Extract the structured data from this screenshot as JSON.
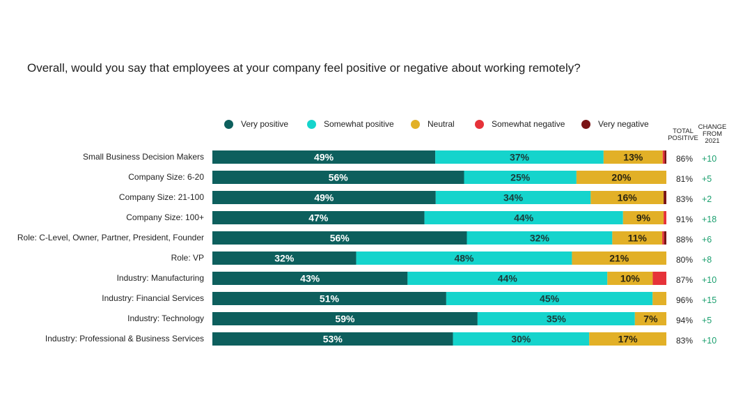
{
  "chart_data": {
    "type": "bar",
    "orientation": "horizontal",
    "stacked": true,
    "title": "Overall, would you say that employees at your company feel positive or negative about working remotely?",
    "xlim": [
      0,
      100
    ],
    "legend_position": "top",
    "categories": [
      "Small Business Decision Makers",
      "Company Size: 6-20",
      "Company Size: 21-100",
      "Company Size: 100+",
      "Role: C-Level, Owner, Partner, President, Founder",
      "Role: VP",
      "Industry: Manufacturing",
      "Industry: Financial Services",
      "Industry: Technology",
      "Industry: Professional & Business Services"
    ],
    "series": [
      {
        "name": "Very positive",
        "color": "#0d5f5d",
        "label_color": "#ffffff",
        "values": [
          49,
          56,
          49,
          47,
          56,
          32,
          43,
          51,
          59,
          53
        ],
        "labels": [
          "49%",
          "56%",
          "49%",
          "47%",
          "56%",
          "32%",
          "43%",
          "51%",
          "59%",
          "53%"
        ]
      },
      {
        "name": "Somewhat positive",
        "color": "#15d4cc",
        "label_color": "#1d3a3a",
        "values": [
          37,
          25,
          34,
          44,
          32,
          48,
          44,
          45,
          35,
          30
        ],
        "labels": [
          "37%",
          "25%",
          "34%",
          "44%",
          "32%",
          "48%",
          "44%",
          "45%",
          "35%",
          "30%"
        ]
      },
      {
        "name": "Neutral",
        "color": "#e2b027",
        "label_color": "#2a2410",
        "values": [
          13,
          20,
          16,
          9,
          11,
          21,
          10,
          3,
          7,
          17
        ],
        "labels": [
          "13%",
          "20%",
          "16%",
          "9%",
          "11%",
          "21%",
          "10%",
          "",
          "7%",
          "17%"
        ]
      },
      {
        "name": "Somewhat negative",
        "color": "#e63239",
        "label_color": "#ffffff",
        "values": [
          0.4,
          0,
          0,
          0.6,
          0.4,
          0,
          3,
          0,
          0,
          0
        ],
        "labels": [
          "",
          "",
          "",
          "",
          "",
          "",
          "",
          "",
          "",
          ""
        ]
      },
      {
        "name": "Very negative",
        "color": "#7a1416",
        "label_color": "#ffffff",
        "values": [
          0.4,
          0,
          0.6,
          0,
          0.5,
          0,
          0,
          0,
          0,
          0
        ],
        "labels": [
          "",
          "",
          "",
          "",
          "",
          "",
          "",
          "",
          "",
          ""
        ]
      }
    ],
    "column_headers": {
      "total_positive": "TOTAL POSITIVE",
      "change": "CHANGE FROM 2021"
    },
    "total_positive": [
      "86%",
      "81%",
      "83%",
      "91%",
      "88%",
      "80%",
      "87%",
      "96%",
      "94%",
      "83%"
    ],
    "change_from_2021": [
      "+10",
      "+5",
      "+2",
      "+18",
      "+6",
      "+8",
      "+10",
      "+15",
      "+5",
      "+10"
    ]
  },
  "headers": {
    "total_line1": "TOTAL",
    "total_line2": "POSITIVE",
    "change_line1": "CHANGE",
    "change_line2": "FROM",
    "change_line3": "2021"
  }
}
